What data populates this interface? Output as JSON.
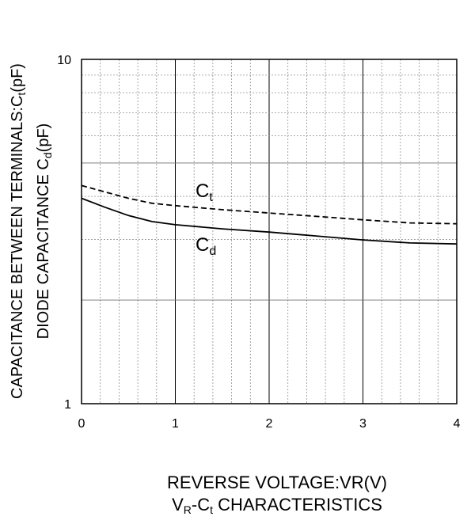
{
  "chart_data": {
    "type": "line",
    "xlabel": "REVERSE VOLTAGE:VR(V)",
    "ylabel": {
      "line1": {
        "main": "CAPACITANCE BETWEEN TERMINALS:C",
        "sub": "t",
        "tail": "(pF)"
      },
      "line2": {
        "main": "DIODE CAPACITANCE C",
        "sub": "d",
        "tail": "(pF)"
      }
    },
    "caption": {
      "part1": "V",
      "sub1": "R",
      "part2": "-C",
      "sub2": "t",
      "part3": " CHARACTERISTICS"
    },
    "x_ticks": [
      "0",
      "1",
      "2",
      "3",
      "4"
    ],
    "y_ticks": [
      "1",
      "10"
    ],
    "xlim": [
      0,
      4
    ],
    "ylim": [
      1,
      10
    ],
    "y_scale": "log",
    "grid": true,
    "series": [
      {
        "name": "C",
        "name_sub": "t",
        "line_style": "dashed",
        "x": [
          0,
          0.25,
          0.5,
          0.75,
          1.0,
          1.5,
          2.0,
          2.5,
          3.0,
          3.5,
          4.0
        ],
        "y": [
          4.3,
          4.12,
          3.95,
          3.82,
          3.76,
          3.66,
          3.58,
          3.5,
          3.42,
          3.35,
          3.33
        ]
      },
      {
        "name": "C",
        "name_sub": "d",
        "line_style": "solid",
        "x": [
          0,
          0.25,
          0.5,
          0.75,
          1.0,
          1.5,
          2.0,
          2.5,
          3.0,
          3.5,
          4.0
        ],
        "y": [
          3.95,
          3.72,
          3.52,
          3.38,
          3.31,
          3.22,
          3.15,
          3.07,
          2.99,
          2.93,
          2.91
        ]
      }
    ]
  }
}
